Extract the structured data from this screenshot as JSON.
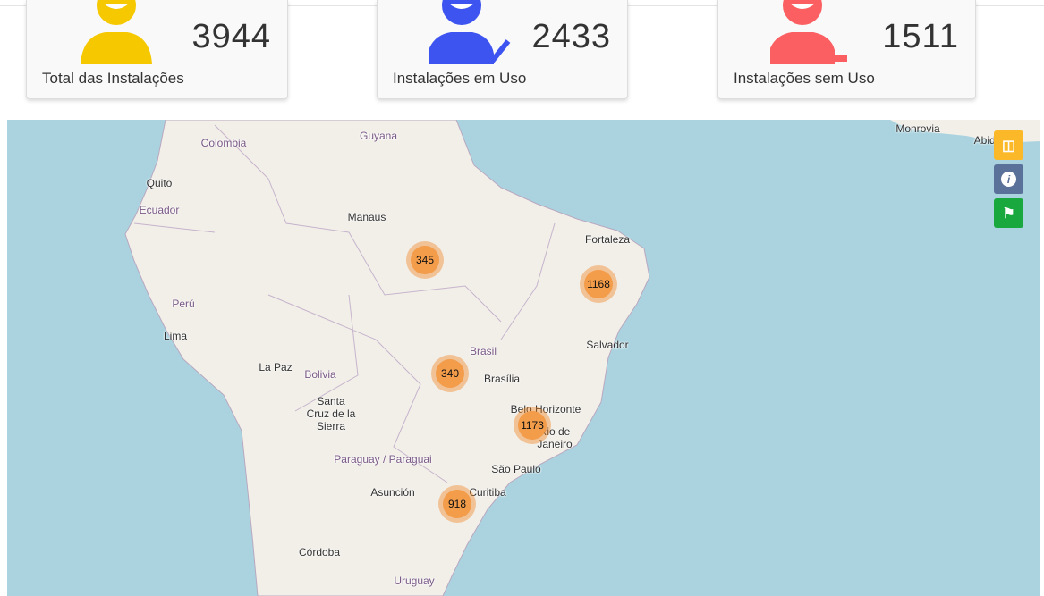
{
  "cards": [
    {
      "value": "3944",
      "label": "Total das Instalações",
      "icon": "user-icon",
      "color": "#f5c800"
    },
    {
      "value": "2433",
      "label": "Instalações em Uso",
      "icon": "user-check-icon",
      "color": "#3d54f0"
    },
    {
      "value": "1511",
      "label": "Instalações sem Uso",
      "icon": "user-minus-icon",
      "color": "#fb5f61"
    }
  ],
  "map": {
    "labels": [
      "Colombia",
      "Guyana",
      "Quito",
      "Ecuador",
      "Manaus",
      "Fortaleza",
      "Perú",
      "Lima",
      "Brasil",
      "Salvador",
      "Brasília",
      "La Paz",
      "Bolivia",
      "Santa Cruz de la Sierra",
      "Belo Horizonte",
      "Rio de Janeiro",
      "Paraguay / Paraguai",
      "Asunción",
      "São Paulo",
      "Curitiba",
      "Córdoba",
      "Uruguay",
      "Monrovia",
      "Abidj"
    ],
    "clusters": [
      "345",
      "1168",
      "340",
      "1173",
      "918"
    ],
    "controls": [
      {
        "icon": "sitemap-icon",
        "color": "#fbb929"
      },
      {
        "icon": "info-icon",
        "color": "#5a7199"
      },
      {
        "icon": "map-marker-icon",
        "color": "#18a83d"
      }
    ]
  }
}
